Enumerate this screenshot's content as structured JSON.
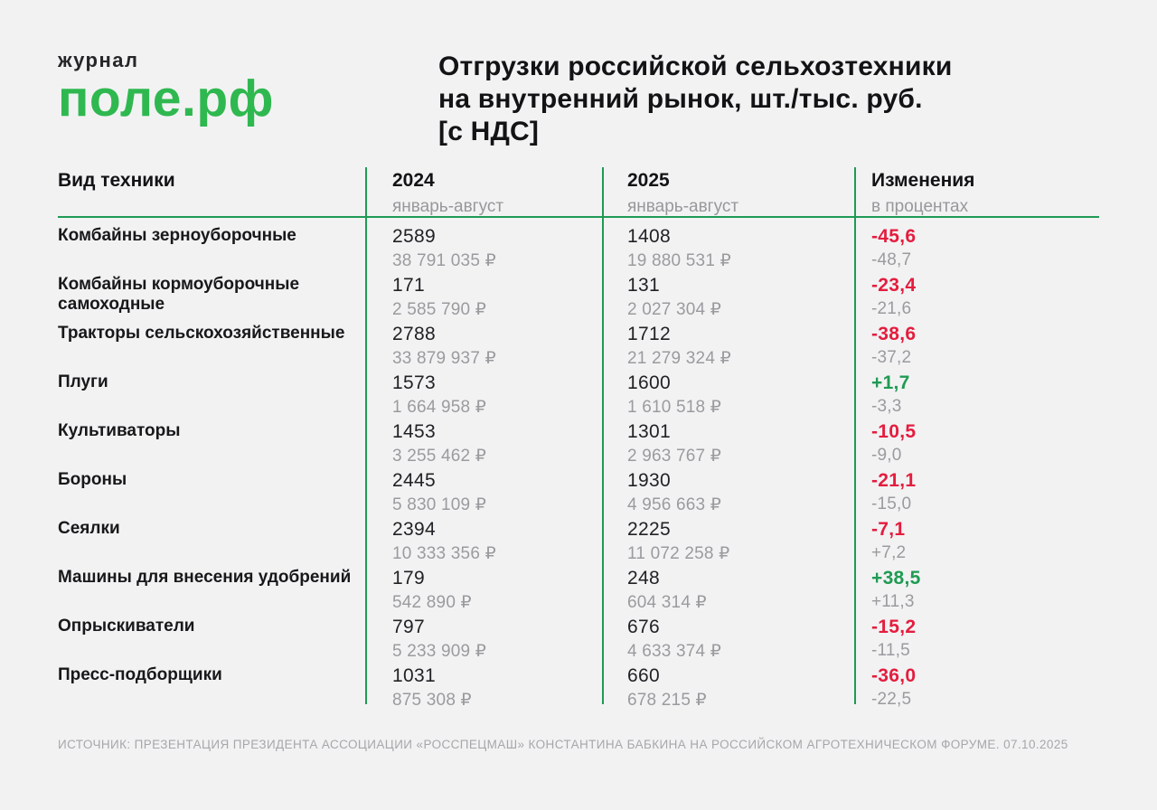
{
  "colors": {
    "background": "#f2f2f3",
    "brand_green": "#2fb84f",
    "line_green": "#1f9a55",
    "negative_red": "#e41d3e",
    "positive_green": "#1f9b52",
    "muted_gray": "#9b9b9f"
  },
  "logo": {
    "journal": "журнал",
    "brand": "поле.рф"
  },
  "title": {
    "line1": "Отгрузки российской сельхозтехники",
    "line2": "на внутренний рынок, шт./тыс. руб.",
    "line3": "[с НДС]"
  },
  "table": {
    "header": {
      "col1": "Вид техники",
      "col2_year": "2024",
      "col2_period": "январь-август",
      "col3_year": "2025",
      "col3_period": "январь-август",
      "col4_title": "Изменения",
      "col4_sub": "в процентах"
    },
    "rows": [
      {
        "name": "Комбайны зерноуборочные",
        "units_2024": "2589",
        "rub_2024": "38 791 035 ₽",
        "units_2025": "1408",
        "rub_2025": "19 880 531 ₽",
        "pct_units": "-45,6",
        "pct_rub": "-48,7"
      },
      {
        "name": "Комбайны кормоуборочные самоходные",
        "units_2024": "171",
        "rub_2024": "2 585 790 ₽",
        "units_2025": "131",
        "rub_2025": "2 027 304 ₽",
        "pct_units": "-23,4",
        "pct_rub": "-21,6"
      },
      {
        "name": "Тракторы сельскохозяйственные",
        "units_2024": "2788",
        "rub_2024": "33 879 937 ₽",
        "units_2025": "1712",
        "rub_2025": "21 279 324 ₽",
        "pct_units": "-38,6",
        "pct_rub": "-37,2"
      },
      {
        "name": "Плуги",
        "units_2024": "1573",
        "rub_2024": "1 664 958 ₽",
        "units_2025": "1600",
        "rub_2025": "1 610 518 ₽",
        "pct_units": "+1,7",
        "pct_rub": "-3,3"
      },
      {
        "name": "Культиваторы",
        "units_2024": "1453",
        "rub_2024": "3 255 462 ₽",
        "units_2025": "1301",
        "rub_2025": "2 963 767 ₽",
        "pct_units": "-10,5",
        "pct_rub": "-9,0"
      },
      {
        "name": "Бороны",
        "units_2024": "2445",
        "rub_2024": "5 830 109 ₽",
        "units_2025": "1930",
        "rub_2025": "4 956 663 ₽",
        "pct_units": "-21,1",
        "pct_rub": "-15,0"
      },
      {
        "name": "Сеялки",
        "units_2024": "2394",
        "rub_2024": "10 333 356 ₽",
        "units_2025": "2225",
        "rub_2025": "11 072 258 ₽",
        "pct_units": "-7,1",
        "pct_rub": "+7,2"
      },
      {
        "name": "Машины для внесения удобрений",
        "units_2024": "179",
        "rub_2024": "542 890 ₽",
        "units_2025": "248",
        "rub_2025": "604 314 ₽",
        "pct_units": "+38,5",
        "pct_rub": "+11,3"
      },
      {
        "name": "Опрыскиватели",
        "units_2024": "797",
        "rub_2024": "5 233 909 ₽",
        "units_2025": "676",
        "rub_2025": "4 633 374 ₽",
        "pct_units": "-15,2",
        "pct_rub": "-11,5"
      },
      {
        "name": "Пресс-подборщики",
        "units_2024": "1031",
        "rub_2024": "875 308 ₽",
        "units_2025": "660",
        "rub_2025": "678 215 ₽",
        "pct_units": "-36,0",
        "pct_rub": "-22,5"
      }
    ]
  },
  "footer": {
    "source": "ИСТОЧНИК: ПРЕЗЕНТАЦИЯ ПРЕЗИДЕНТА АССОЦИАЦИИ «РОССПЕЦМАШ» КОНСТАНТИНА БАБКИНА НА РОССИЙСКОМ АГРОТЕХНИЧЕСКОМ ФОРУМЕ. 07.10.2025",
    "date": "07.10.2025"
  },
  "chart_data": {
    "type": "table",
    "title": "Отгрузки российской сельхозтехники на внутренний рынок, шт./тыс. руб. (с НДС)",
    "columns": [
      "Вид техники",
      "2024 январь-август, шт.",
      "2024 январь-август, тыс. руб.",
      "2025 январь-август, шт.",
      "2025 январь-август, тыс. руб.",
      "Изменение шт., %",
      "Изменение руб., %"
    ],
    "rows": [
      [
        "Комбайны зерноуборочные",
        2589,
        38791035,
        1408,
        19880531,
        -45.6,
        -48.7
      ],
      [
        "Комбайны кормоуборочные самоходные",
        171,
        2585790,
        131,
        2027304,
        -23.4,
        -21.6
      ],
      [
        "Тракторы сельскохозяйственные",
        2788,
        33879937,
        1712,
        21279324,
        -38.6,
        -37.2
      ],
      [
        "Плуги",
        1573,
        1664958,
        1600,
        1610518,
        1.7,
        -3.3
      ],
      [
        "Культиваторы",
        1453,
        3255462,
        1301,
        2963767,
        -10.5,
        -9.0
      ],
      [
        "Бороны",
        2445,
        5830109,
        1930,
        4956663,
        -21.1,
        -15.0
      ],
      [
        "Сеялки",
        2394,
        10333356,
        2225,
        11072258,
        -7.1,
        7.2
      ],
      [
        "Машины для внесения удобрений",
        179,
        542890,
        248,
        604314,
        38.5,
        11.3
      ],
      [
        "Опрыскиватели",
        797,
        5233909,
        676,
        4633374,
        -15.2,
        -11.5
      ],
      [
        "Пресс-подборщики",
        1031,
        875308,
        660,
        678215,
        -36.0,
        -22.5
      ]
    ],
    "source": "ИСТОЧНИК: ПРЕЗЕНТАЦИЯ ПРЕЗИДЕНТА АССОЦИАЦИИ «РОССПЕЦМАШ» КОНСТАНТИНА БАБКИНА НА РОССИЙСКОМ АГРОТЕХНИЧЕСКОМ ФОРУМЕ. 07.10.2025"
  }
}
